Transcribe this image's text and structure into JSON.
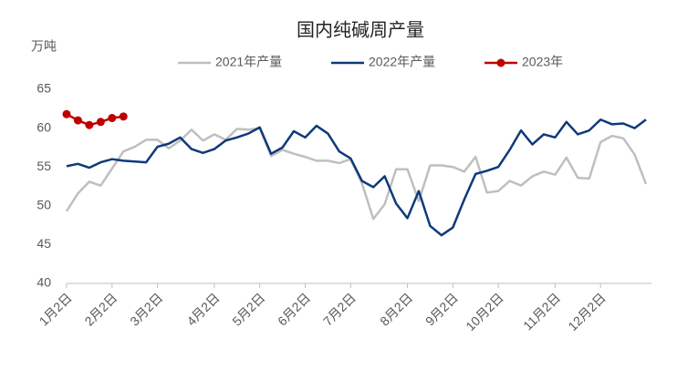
{
  "chart_data": {
    "type": "line",
    "title": "国内纯碱周产量",
    "y_label": "万吨",
    "categories": [
      "1月2日",
      null,
      null,
      null,
      "2月2日",
      null,
      null,
      null,
      "3月2日",
      null,
      null,
      null,
      null,
      "4月2日",
      null,
      null,
      null,
      "5月2日",
      null,
      null,
      null,
      "6月2日",
      null,
      null,
      null,
      "7月2日",
      null,
      null,
      null,
      null,
      "8月2日",
      null,
      null,
      null,
      "9月2日",
      null,
      null,
      null,
      "10月2日",
      null,
      null,
      null,
      null,
      "11月2日",
      null,
      null,
      null,
      "12月2日",
      null,
      null,
      null,
      null
    ],
    "series": [
      {
        "name": "2021年产量",
        "color": "#bfbfbf",
        "values": [
          49.3,
          51.6,
          53.1,
          52.6,
          54.8,
          57.0,
          57.6,
          58.5,
          58.5,
          57.4,
          58.4,
          59.8,
          58.4,
          59.2,
          58.5,
          59.9,
          59.8,
          60.0,
          56.4,
          57.2,
          56.7,
          56.3,
          55.8,
          55.8,
          55.5,
          56.0,
          52.9,
          48.3,
          50.2,
          54.7,
          54.7,
          50.6,
          55.2,
          55.2,
          55.0,
          54.4,
          56.3,
          51.7,
          51.9,
          53.2,
          52.6,
          53.8,
          54.4,
          54.0,
          56.2,
          53.6,
          53.5,
          58.2,
          59.0,
          58.7,
          56.6,
          52.8
        ]
      },
      {
        "name": "2022年产量",
        "color": "#0e3a7a",
        "values": [
          55.1,
          55.4,
          54.9,
          55.6,
          56.0,
          55.8,
          55.7,
          55.6,
          57.6,
          58.0,
          58.8,
          57.3,
          56.8,
          57.3,
          58.4,
          58.8,
          59.3,
          60.1,
          56.7,
          57.5,
          59.6,
          58.8,
          60.3,
          59.3,
          57.0,
          56.1,
          53.2,
          52.4,
          53.8,
          50.3,
          48.4,
          51.9,
          47.4,
          46.2,
          47.2,
          50.8,
          54.1,
          54.5,
          55.0,
          57.2,
          59.7,
          57.9,
          59.2,
          58.8,
          60.8,
          59.2,
          59.7,
          61.1,
          60.5,
          60.6,
          60.0,
          61.1
        ]
      },
      {
        "name": "2023年",
        "color": "#c00000",
        "markers": true,
        "values": [
          61.8,
          61.0,
          60.4,
          60.8,
          61.3,
          61.5,
          null,
          null,
          null,
          null,
          null,
          null,
          null,
          null,
          null,
          null,
          null,
          null,
          null,
          null,
          null,
          null,
          null,
          null,
          null,
          null,
          null,
          null,
          null,
          null,
          null,
          null,
          null,
          null,
          null,
          null,
          null,
          null,
          null,
          null,
          null,
          null,
          null,
          null,
          null,
          null,
          null,
          null,
          null,
          null,
          null,
          null
        ]
      }
    ],
    "ylim": [
      40,
      65
    ],
    "yticks": [
      40,
      45,
      50,
      55,
      60,
      65
    ],
    "grid": false
  }
}
